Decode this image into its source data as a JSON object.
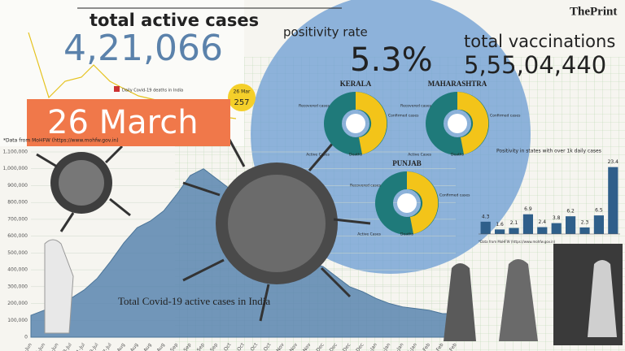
{
  "brand": "ThePrint",
  "active": {
    "label": "total active cases",
    "value": "4,21,066"
  },
  "date_banner": "26 March",
  "positivity": {
    "label": "positivity rate",
    "value": "5.3%"
  },
  "vaccinations": {
    "label": "total vaccinations",
    "value": "5,55,04,440"
  },
  "source": "*Data from MoHFW (https://www.mohfw.gov.in)",
  "deaths_chart": {
    "legend": "Daily Covid-19 deaths in India",
    "callout_date": "26 Mar",
    "callout_value": "257"
  },
  "donuts": [
    {
      "title": "KERALA",
      "labels": [
        "Recovered cases",
        "Confirmed cases",
        "Deaths",
        "Active Cases"
      ]
    },
    {
      "title": "MAHARASHTRA",
      "labels": [
        "Recovered cases",
        "Confirmed cases",
        "Deaths",
        "Active Cases"
      ]
    },
    {
      "title": "PUNJAB",
      "labels": [
        "Recovered cases",
        "Confirmed cases",
        "Deaths",
        "Active Cases"
      ]
    }
  ],
  "positivity_chart": {
    "type": "bar",
    "title": "Positivity in states with over 1k daily cases",
    "values": [
      4.3,
      1.6,
      2.1,
      6.9,
      2.4,
      3.8,
      6.2,
      2.3,
      6.5,
      23.4
    ],
    "color": "#2f5f8a",
    "ylim": [
      0,
      25
    ],
    "source": "*Data from MoHFW (https://www.mohfw.gov.in)"
  },
  "chart_data": {
    "type": "area",
    "title": "Total Covid-19 active cases in India",
    "categories": [
      "9-Jun",
      "17-Jun",
      "25-Jun",
      "3-Jul",
      "11-Jul",
      "19-Jul",
      "27-Jul",
      "4-Aug",
      "12-Aug",
      "20-Aug",
      "28-Aug",
      "5-Sep",
      "13-Sep",
      "21-Sep",
      "29-Sep",
      "7-Oct",
      "15-Oct",
      "23-Oct",
      "31-Oct",
      "8-Nov",
      "16-Nov",
      "24-Nov",
      "2-Dec",
      "10-Dec",
      "18-Dec",
      "26-Dec",
      "3-Jan",
      "11-Jan",
      "19-Jan",
      "27-Jan",
      "4-Feb",
      "12-Feb",
      "20-Feb"
    ],
    "values": [
      130000,
      160000,
      190000,
      230000,
      280000,
      350000,
      450000,
      560000,
      650000,
      690000,
      750000,
      850000,
      960000,
      1000000,
      940000,
      880000,
      790000,
      640000,
      580000,
      500000,
      440000,
      440000,
      420000,
      360000,
      300000,
      270000,
      230000,
      200000,
      180000,
      170000,
      160000,
      140000,
      140000
    ],
    "color": "#5a86b0",
    "ylim": [
      0,
      1100000
    ],
    "yticks": [
      {
        "value": 0,
        "label": "0"
      },
      {
        "value": 100000,
        "label": "100,000"
      },
      {
        "value": 200000,
        "label": "200,000"
      },
      {
        "value": 300000,
        "label": "300,000"
      },
      {
        "value": 400000,
        "label": "400,000"
      },
      {
        "value": 500000,
        "label": "500,000"
      },
      {
        "value": 600000,
        "label": "600,000"
      },
      {
        "value": 700000,
        "label": "700,000"
      },
      {
        "value": 800000,
        "label": "800,000"
      },
      {
        "value": 900000,
        "label": "900,000"
      },
      {
        "value": 1000000,
        "label": "1,000,000"
      },
      {
        "value": 1100000,
        "label": "1,100,000"
      }
    ],
    "grid": true
  }
}
